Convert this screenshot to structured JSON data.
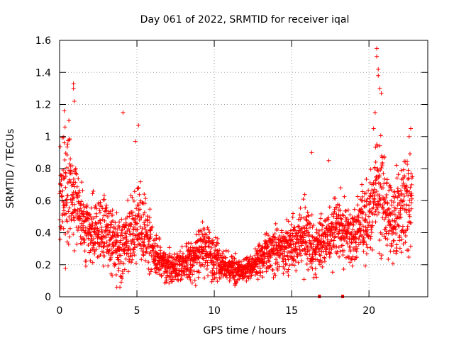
{
  "chart_data": {
    "type": "scatter",
    "title": "Day 061 of 2022, SRMTID for receiver iqal",
    "xlabel": "GPS time / hours",
    "ylabel": "SRMTID / TECUs",
    "xlim": [
      0,
      23.8
    ],
    "ylim": [
      0,
      1.6
    ],
    "xticks": [
      0,
      5,
      10,
      15,
      20
    ],
    "xtick_labels": [
      "0",
      "5",
      "10",
      "15",
      "20"
    ],
    "yticks": [
      0,
      0.2,
      0.4,
      0.6,
      0.8,
      1,
      1.2,
      1.4,
      1.6
    ],
    "ytick_labels": [
      "0",
      "0.2",
      "0.4",
      "0.6",
      "0.8",
      "1",
      "1.2",
      "1.4",
      "1.6"
    ],
    "grid": true,
    "marker": "plus",
    "color": "#ff0000",
    "envelope_hours": [
      0,
      0.5,
      1,
      1.5,
      2,
      2.5,
      3,
      3.5,
      4,
      4.5,
      5,
      5.5,
      6,
      6.5,
      7,
      7.5,
      8,
      8.5,
      9,
      9.5,
      10,
      10.5,
      11,
      11.5,
      12,
      12.5,
      13,
      13.5,
      14,
      14.5,
      15,
      15.5,
      16,
      16.5,
      17,
      17.5,
      18,
      18.5,
      19,
      19.5,
      20,
      20.5,
      21,
      21.5,
      22,
      22.5,
      22.8
    ],
    "envelope_median": [
      0.6,
      0.7,
      0.62,
      0.45,
      0.38,
      0.42,
      0.4,
      0.35,
      0.3,
      0.38,
      0.45,
      0.4,
      0.32,
      0.22,
      0.2,
      0.18,
      0.2,
      0.22,
      0.28,
      0.3,
      0.24,
      0.2,
      0.18,
      0.17,
      0.16,
      0.18,
      0.24,
      0.28,
      0.3,
      0.3,
      0.32,
      0.35,
      0.38,
      0.3,
      0.32,
      0.35,
      0.45,
      0.4,
      0.38,
      0.45,
      0.5,
      0.7,
      0.55,
      0.5,
      0.55,
      0.6,
      0.55
    ],
    "envelope_spread": [
      0.25,
      0.3,
      0.25,
      0.18,
      0.15,
      0.17,
      0.17,
      0.15,
      0.14,
      0.16,
      0.2,
      0.18,
      0.14,
      0.09,
      0.08,
      0.07,
      0.08,
      0.1,
      0.13,
      0.13,
      0.1,
      0.08,
      0.07,
      0.07,
      0.06,
      0.07,
      0.1,
      0.11,
      0.12,
      0.12,
      0.13,
      0.15,
      0.18,
      0.13,
      0.14,
      0.16,
      0.18,
      0.17,
      0.16,
      0.18,
      0.2,
      0.3,
      0.22,
      0.2,
      0.22,
      0.24,
      0.22
    ],
    "highlights": [
      {
        "x": 0.9,
        "y": 1.33
      },
      {
        "x": 0.9,
        "y": 1.3
      },
      {
        "x": 0.95,
        "y": 1.22
      },
      {
        "x": 0.3,
        "y": 1.16
      },
      {
        "x": 0.6,
        "y": 1.1
      },
      {
        "x": 4.1,
        "y": 1.15
      },
      {
        "x": 5.1,
        "y": 1.07
      },
      {
        "x": 4.9,
        "y": 0.97
      },
      {
        "x": 20.5,
        "y": 1.55
      },
      {
        "x": 20.5,
        "y": 1.5
      },
      {
        "x": 20.6,
        "y": 1.42
      },
      {
        "x": 20.6,
        "y": 1.38
      },
      {
        "x": 20.7,
        "y": 1.3
      },
      {
        "x": 20.8,
        "y": 1.27
      },
      {
        "x": 20.4,
        "y": 1.15
      },
      {
        "x": 20.3,
        "y": 1.05
      },
      {
        "x": 16.3,
        "y": 0.9
      },
      {
        "x": 17.4,
        "y": 0.85
      },
      {
        "x": 22.7,
        "y": 1.05
      },
      {
        "x": 22.6,
        "y": 1.0
      },
      {
        "x": 3.7,
        "y": 0.06
      },
      {
        "x": 3.9,
        "y": 0.06
      }
    ],
    "gap_markers": [
      {
        "x": 16.8,
        "y": 0.0
      },
      {
        "x": 18.3,
        "y": 0.0
      }
    ]
  }
}
